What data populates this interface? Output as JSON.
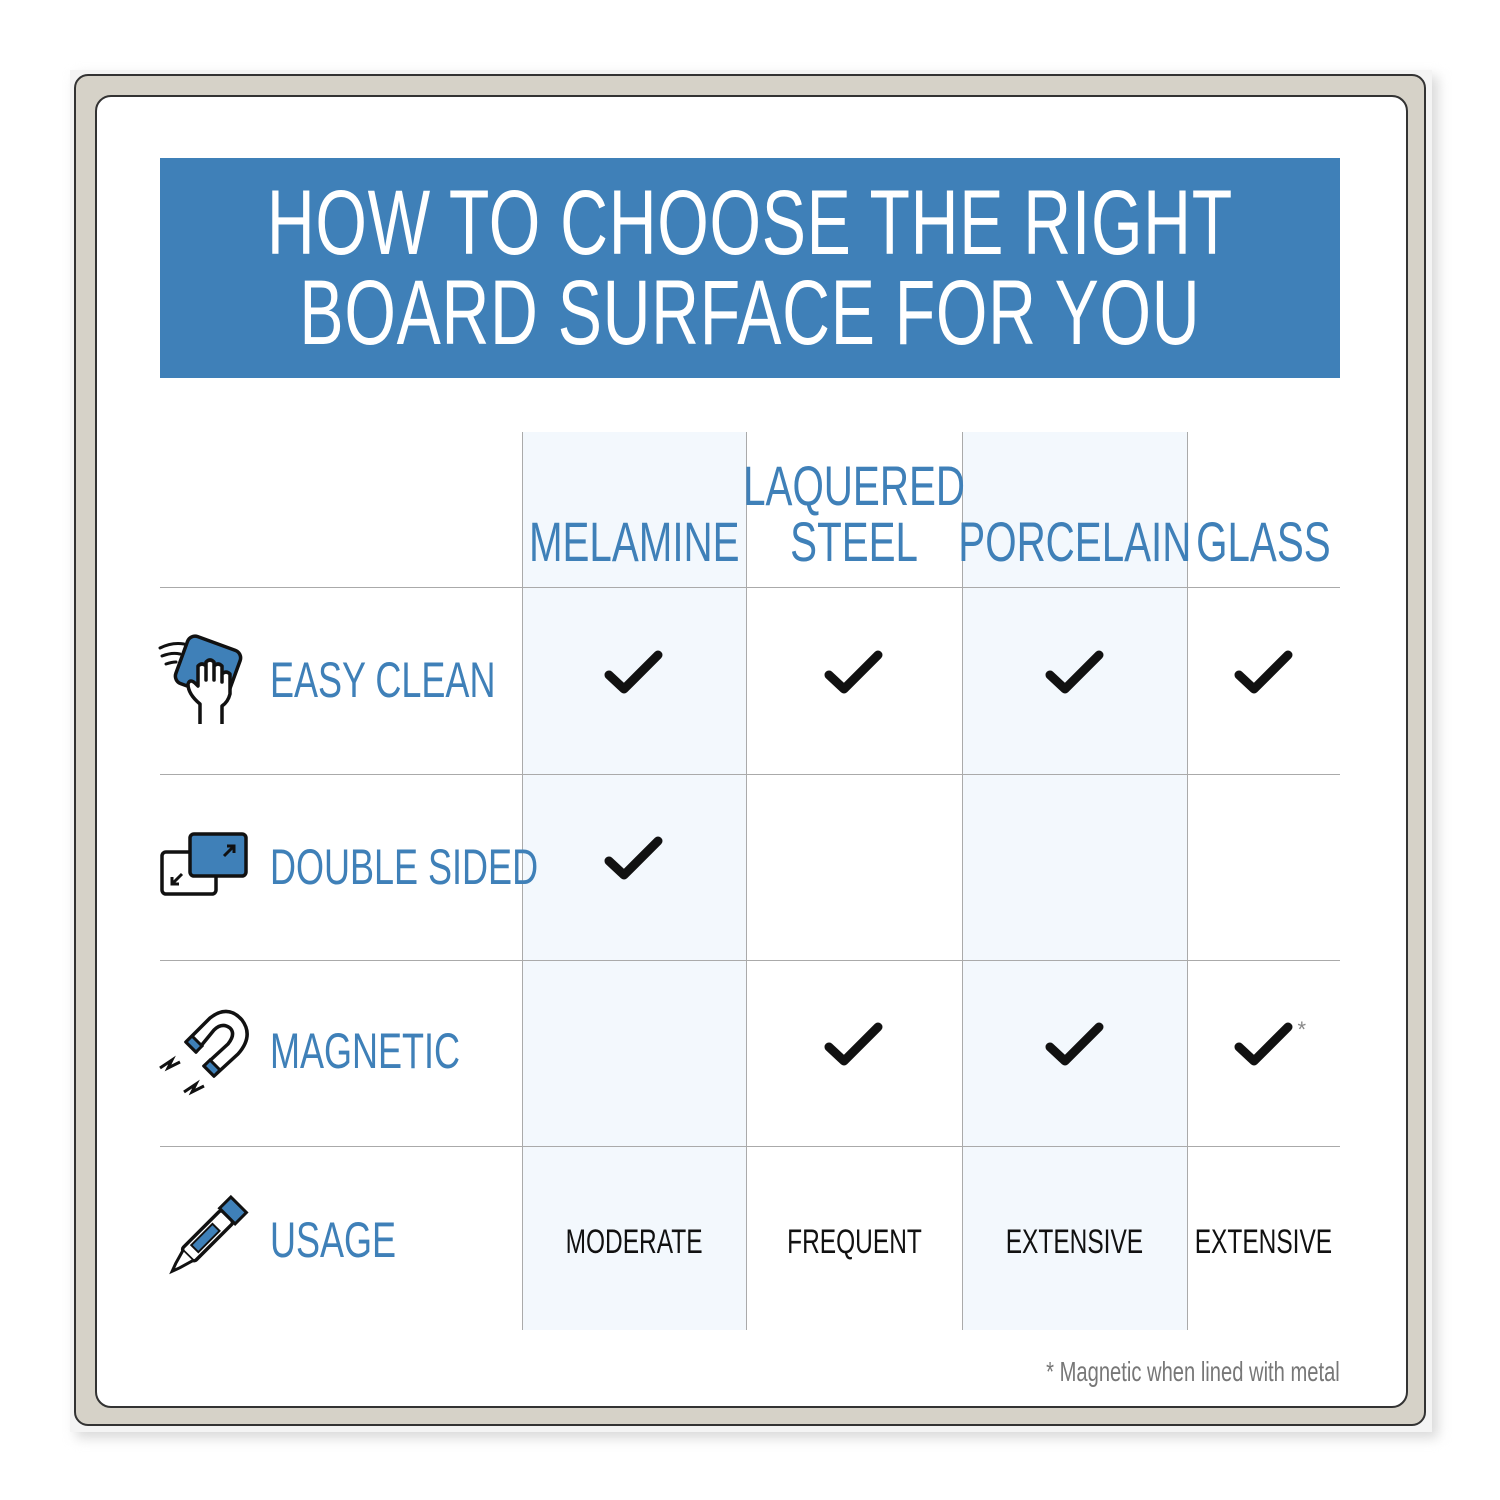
{
  "title_line1": "HOW TO CHOOSE THE RIGHT",
  "title_line2": "BOARD SURFACE FOR YOU",
  "colors": {
    "accent": "#3f80b8",
    "shade": "#f3f8fd",
    "frame": "#d6d2c8"
  },
  "columns": [
    "MELAMINE",
    "LAQUERED\nSTEEL",
    "PORCELAIN",
    "GLASS"
  ],
  "rows": [
    {
      "label": "EASY CLEAN",
      "icon": "hand-wipe-icon",
      "values": [
        true,
        true,
        true,
        true
      ]
    },
    {
      "label": "DOUBLE SIDED",
      "icon": "double-sided-icon",
      "values": [
        true,
        false,
        false,
        false
      ]
    },
    {
      "label": "MAGNETIC",
      "icon": "magnet-icon",
      "values": [
        false,
        true,
        true,
        true
      ],
      "asterisk_column": 3,
      "asterisk": "*"
    },
    {
      "label": "USAGE",
      "icon": "marker-icon",
      "values": [
        "MODERATE",
        "FREQUENT",
        "EXTENSIVE",
        "EXTENSIVE"
      ]
    }
  ],
  "footnote": "* Magnetic when lined with metal"
}
